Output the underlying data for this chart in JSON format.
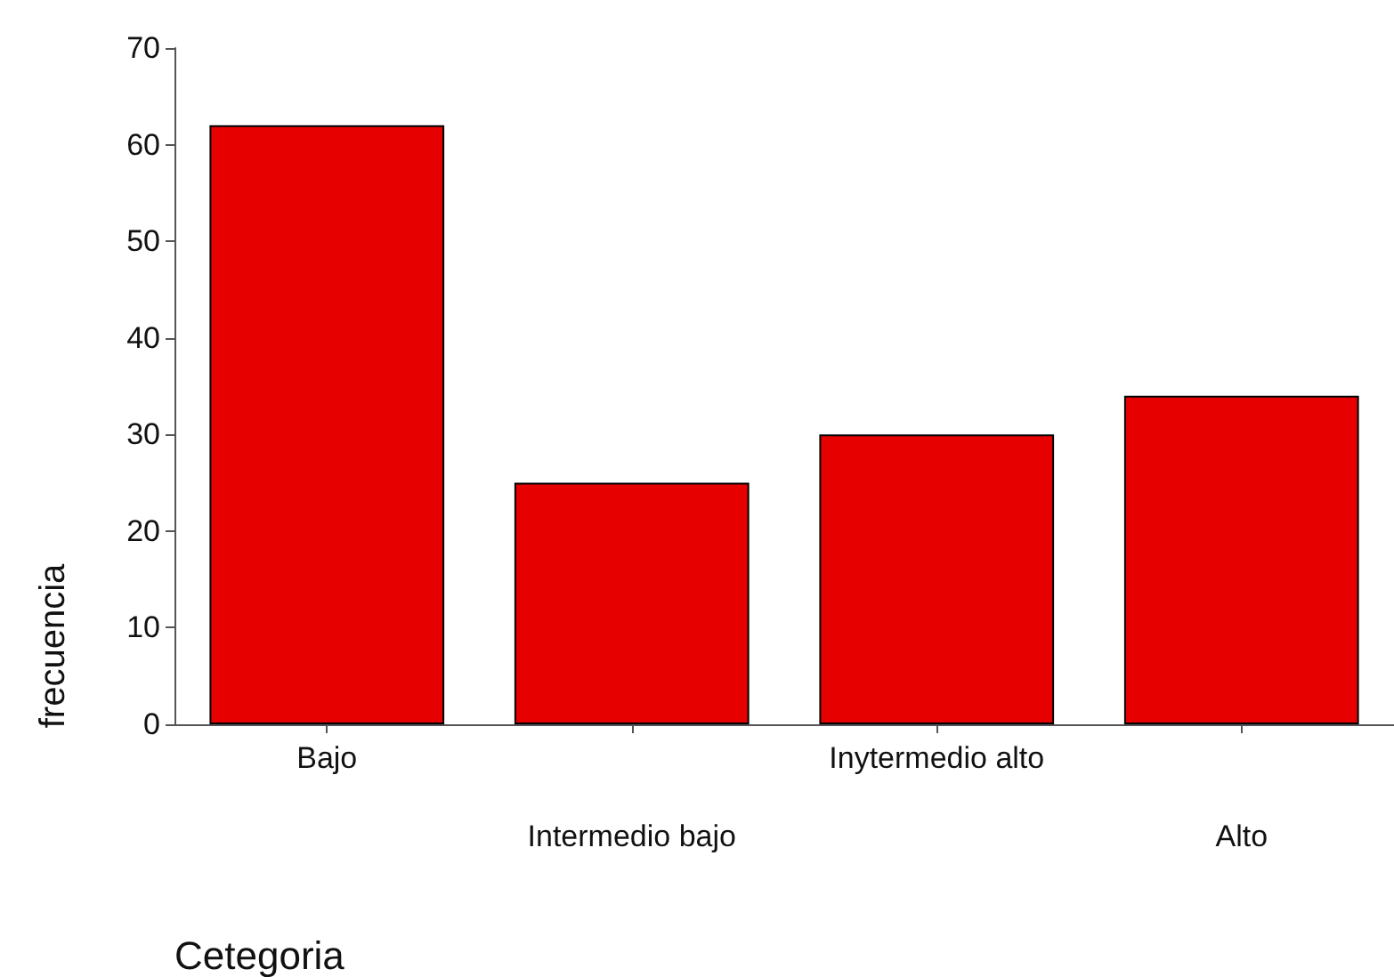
{
  "chart_data": {
    "type": "bar",
    "xlabel": "Cetegoria",
    "ylabel": "frecuencia",
    "categories": [
      "Bajo",
      "Intermedio bajo",
      "Inytermedio alto",
      "Alto"
    ],
    "values": [
      62,
      25,
      30,
      34
    ],
    "color": "#e60000",
    "ylim": [
      0,
      70
    ],
    "yticks": [
      0,
      10,
      20,
      30,
      40,
      50,
      60,
      70
    ],
    "grid": false
  }
}
